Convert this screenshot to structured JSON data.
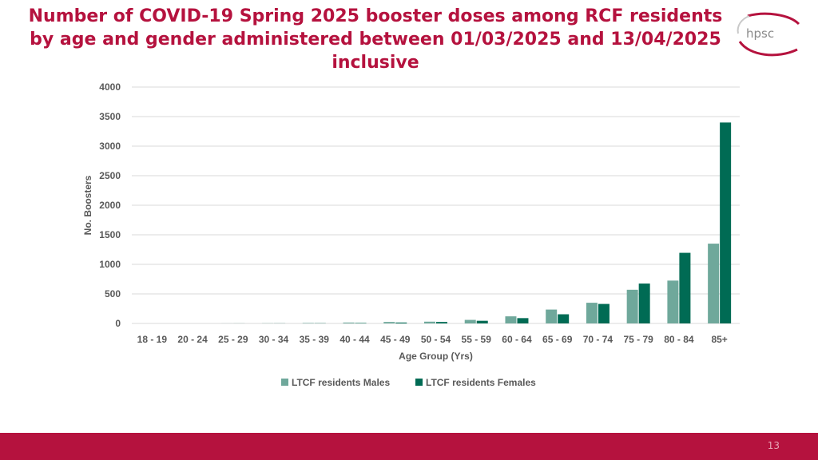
{
  "title": "Number of COVID-19 Spring 2025 booster doses among RCF residents by age and gender administered between 01/03/2025 and 13/04/2025 inclusive",
  "logo": {
    "text": "hpsc",
    "icon": "hpsc-logo"
  },
  "page_number": "13",
  "colors": {
    "accent": "#b5123e",
    "males": "#6fa89b",
    "females": "#006b54",
    "grid": "#d9d9d9"
  },
  "chart_data": {
    "type": "bar",
    "title": "Number of COVID-19 Spring 2025 booster doses among RCF residents by age and gender administered between 01/03/2025 and 13/04/2025 inclusive",
    "xlabel": "Age Group (Yrs)",
    "ylabel": "No. Boosters",
    "ylim": [
      0,
      4000
    ],
    "yticks": [
      0,
      500,
      1000,
      1500,
      2000,
      2500,
      3000,
      3500,
      4000
    ],
    "grid": true,
    "legend_position": "bottom",
    "categories": [
      "18 - 19",
      "20 - 24",
      "25 - 29",
      "30 - 34",
      "35 - 39",
      "40 - 44",
      "45 - 49",
      "50 - 54",
      "55 - 59",
      "60 - 64",
      "65 - 69",
      "70 - 74",
      "75 - 79",
      "80 - 84",
      "85+"
    ],
    "series": [
      {
        "name": "LTCF residents Males",
        "color": "#6fa89b",
        "values": [
          0,
          0,
          1,
          3,
          8,
          15,
          25,
          30,
          60,
          120,
          235,
          350,
          570,
          725,
          1350
        ]
      },
      {
        "name": "LTCF residents Females",
        "color": "#006b54",
        "values": [
          0,
          0,
          1,
          2,
          4,
          8,
          15,
          25,
          45,
          90,
          155,
          330,
          675,
          1195,
          3400
        ]
      }
    ]
  }
}
